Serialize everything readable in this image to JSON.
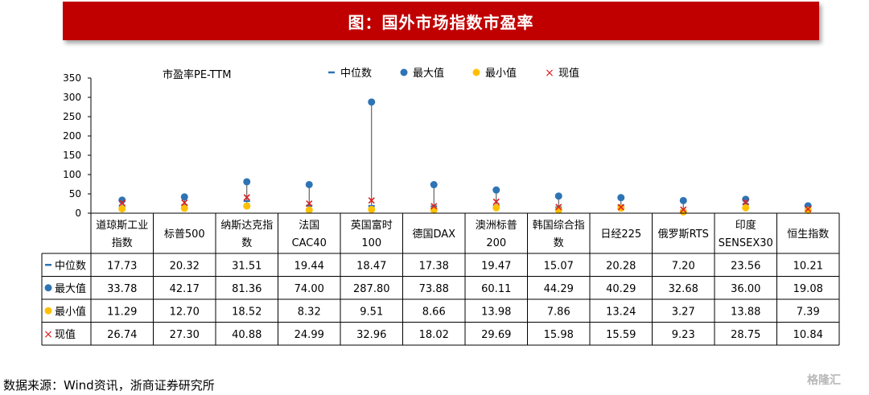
{
  "header": {
    "title": "图：国外市场指数市盈率"
  },
  "source": "数据来源：Wind资讯，浙商证券研究所",
  "watermark": "格隆汇",
  "chart_data": {
    "type": "scatter",
    "title": "",
    "ylabel": "市盈率PE-TTM",
    "ylim": [
      0,
      350
    ],
    "yticks": [
      0,
      50,
      100,
      150,
      200,
      250,
      300,
      350
    ],
    "legend_position": "top",
    "categories": [
      [
        "道琼斯工业",
        "指数"
      ],
      [
        "标普500"
      ],
      [
        "纳斯达克指",
        "数"
      ],
      [
        "法国",
        "CAC40"
      ],
      [
        "英国富时",
        "100"
      ],
      [
        "德国DAX"
      ],
      [
        "澳洲标普",
        "200"
      ],
      [
        "韩国综合指",
        "数"
      ],
      [
        "日经225"
      ],
      [
        "俄罗斯RTS"
      ],
      [
        "印度",
        "SENSEX30"
      ],
      [
        "恒生指数"
      ]
    ],
    "series": [
      {
        "name": "中位数",
        "marker": "dash",
        "color": "#2e74b5",
        "values": [
          17.73,
          20.32,
          31.51,
          19.44,
          18.47,
          17.38,
          19.47,
          15.07,
          20.28,
          7.2,
          23.56,
          10.21
        ]
      },
      {
        "name": "最大值",
        "marker": "circle",
        "color": "#2e74b5",
        "values": [
          33.78,
          42.17,
          81.36,
          74.0,
          287.8,
          73.88,
          60.11,
          44.29,
          40.29,
          32.68,
          36.0,
          19.08
        ]
      },
      {
        "name": "最小值",
        "marker": "circle",
        "color": "#ffc000",
        "values": [
          11.29,
          12.7,
          18.52,
          8.32,
          9.51,
          8.66,
          13.98,
          7.86,
          13.24,
          3.27,
          13.88,
          7.39
        ]
      },
      {
        "name": "现值",
        "marker": "x",
        "color": "#e02020",
        "values": [
          26.74,
          27.3,
          40.88,
          24.99,
          32.96,
          18.02,
          29.69,
          15.98,
          15.59,
          9.23,
          28.75,
          10.84
        ]
      }
    ]
  }
}
